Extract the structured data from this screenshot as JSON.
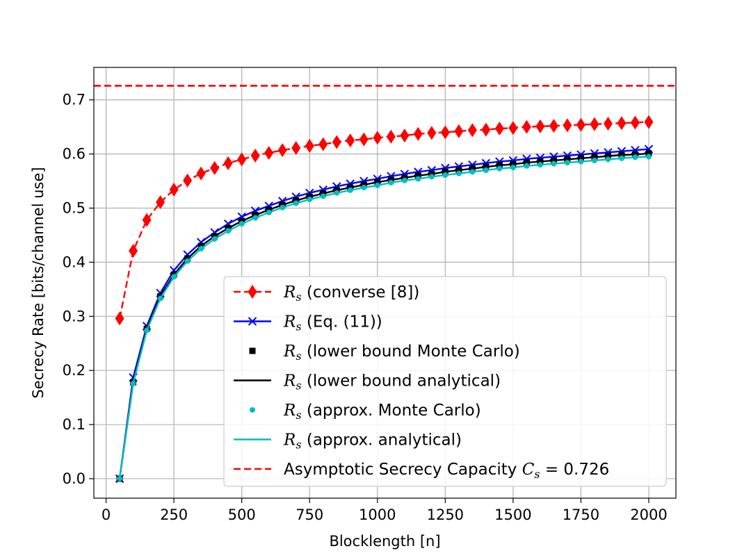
{
  "chart_data": {
    "type": "line",
    "title": "",
    "xlabel": "Blocklength [n]",
    "ylabel": "Secrecy Rate [bits/channel use]",
    "xlim": [
      -45,
      2100
    ],
    "ylim": [
      -0.036,
      0.76
    ],
    "xticks": [
      0,
      250,
      500,
      750,
      1000,
      1250,
      1500,
      1750,
      2000
    ],
    "yticks": [
      0.0,
      0.1,
      0.2,
      0.3,
      0.4,
      0.5,
      0.6,
      0.7
    ],
    "xtick_labels": [
      "0",
      "250",
      "500",
      "750",
      "1000",
      "1250",
      "1500",
      "1750",
      "2000"
    ],
    "ytick_labels": [
      "0.0",
      "0.1",
      "0.2",
      "0.3",
      "0.4",
      "0.5",
      "0.6",
      "0.7"
    ],
    "grid": true,
    "legend_position": "lower-right",
    "x": [
      50,
      100,
      150,
      200,
      250,
      300,
      350,
      400,
      450,
      500,
      550,
      600,
      650,
      700,
      750,
      800,
      850,
      900,
      950,
      1000,
      1050,
      1100,
      1150,
      1200,
      1250,
      1300,
      1350,
      1400,
      1450,
      1500,
      1550,
      1600,
      1650,
      1700,
      1750,
      1800,
      1850,
      1900,
      1950,
      2000
    ],
    "series": [
      {
        "name": "converse",
        "legend_label": "(converse [8])",
        "color": "#ff0000",
        "style": "dashed-line-diamond",
        "values": [
          0.296,
          0.421,
          0.478,
          0.511,
          0.534,
          0.551,
          0.564,
          0.574,
          0.583,
          0.59,
          0.597,
          0.602,
          0.607,
          0.611,
          0.615,
          0.618,
          0.622,
          0.625,
          0.627,
          0.63,
          0.632,
          0.634,
          0.637,
          0.639,
          0.64,
          0.642,
          0.644,
          0.645,
          0.647,
          0.648,
          0.65,
          0.651,
          0.652,
          0.653,
          0.654,
          0.655,
          0.656,
          0.657,
          0.658,
          0.659
        ]
      },
      {
        "name": "eq11",
        "legend_label": "(Eq. (11))",
        "color": "#0000ff",
        "style": "solid-line-x",
        "values": [
          0.0,
          0.187,
          0.282,
          0.343,
          0.385,
          0.414,
          0.437,
          0.455,
          0.471,
          0.484,
          0.495,
          0.504,
          0.513,
          0.521,
          0.528,
          0.534,
          0.54,
          0.545,
          0.55,
          0.554,
          0.559,
          0.563,
          0.567,
          0.57,
          0.574,
          0.577,
          0.58,
          0.583,
          0.586,
          0.588,
          0.591,
          0.593,
          0.595,
          0.597,
          0.599,
          0.601,
          0.603,
          0.605,
          0.607,
          0.609
        ]
      },
      {
        "name": "lb-monte-carlo",
        "legend_label": "(lower bound Monte Carlo)",
        "color": "#000000",
        "style": "square-markers",
        "values": [
          0.0,
          0.178,
          0.277,
          0.337,
          0.377,
          0.407,
          0.43,
          0.448,
          0.463,
          0.476,
          0.487,
          0.497,
          0.506,
          0.514,
          0.521,
          0.527,
          0.533,
          0.538,
          0.543,
          0.548,
          0.552,
          0.556,
          0.56,
          0.563,
          0.567,
          0.57,
          0.573,
          0.576,
          0.579,
          0.581,
          0.584,
          0.586,
          0.588,
          0.59,
          0.592,
          0.594,
          0.596,
          0.598,
          0.599,
          0.601
        ]
      },
      {
        "name": "lb-analytical",
        "legend_label": "(lower bound analytical)",
        "color": "#000000",
        "style": "solid-line",
        "values": [
          0.0,
          0.178,
          0.277,
          0.337,
          0.377,
          0.407,
          0.43,
          0.448,
          0.463,
          0.476,
          0.487,
          0.497,
          0.506,
          0.514,
          0.521,
          0.527,
          0.533,
          0.538,
          0.543,
          0.548,
          0.552,
          0.556,
          0.56,
          0.563,
          0.567,
          0.57,
          0.573,
          0.576,
          0.579,
          0.581,
          0.584,
          0.586,
          0.588,
          0.59,
          0.592,
          0.594,
          0.596,
          0.598,
          0.599,
          0.601
        ]
      },
      {
        "name": "approx-monte-carlo",
        "legend_label": "(approx. Monte Carlo)",
        "color": "#00bfbf",
        "style": "circle-markers",
        "values": [
          0.0,
          0.176,
          0.274,
          0.333,
          0.373,
          0.402,
          0.425,
          0.443,
          0.458,
          0.471,
          0.482,
          0.492,
          0.501,
          0.509,
          0.516,
          0.522,
          0.528,
          0.533,
          0.538,
          0.542,
          0.547,
          0.551,
          0.554,
          0.558,
          0.561,
          0.564,
          0.567,
          0.57,
          0.573,
          0.575,
          0.578,
          0.58,
          0.582,
          0.584,
          0.586,
          0.588,
          0.59,
          0.592,
          0.594,
          0.595
        ]
      },
      {
        "name": "approx-analytical",
        "legend_label": "(approx. analytical)",
        "color": "#00bfbf",
        "style": "solid-line",
        "values": [
          0.0,
          0.176,
          0.274,
          0.333,
          0.373,
          0.402,
          0.425,
          0.443,
          0.458,
          0.471,
          0.482,
          0.492,
          0.501,
          0.509,
          0.516,
          0.522,
          0.528,
          0.533,
          0.538,
          0.542,
          0.547,
          0.551,
          0.554,
          0.558,
          0.561,
          0.564,
          0.567,
          0.57,
          0.573,
          0.575,
          0.578,
          0.58,
          0.582,
          0.584,
          0.586,
          0.588,
          0.59,
          0.592,
          0.594,
          0.595
        ]
      }
    ],
    "reference_line": {
      "name": "asymptotic-capacity",
      "legend_label": "Asymptotic Secrecy Capacity",
      "legend_formula": "C",
      "legend_formula_sub": "s",
      "legend_formula_value": " = 0.726",
      "color": "#ff0000",
      "style": "dashed-line",
      "value": 0.726
    },
    "legend_symbol": "R",
    "legend_symbol_sub": "s"
  }
}
